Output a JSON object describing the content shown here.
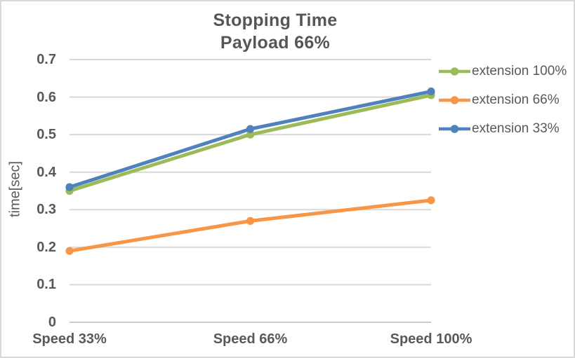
{
  "chart_data": {
    "type": "line",
    "title_line1": "Stopping Time",
    "title_line2": "Payload 66%",
    "ylabel": "time[sec]",
    "xlabel": "",
    "categories": [
      "Speed 33%",
      "Speed 66%",
      "Speed 100%"
    ],
    "series": [
      {
        "name": "extension 100%",
        "color": "#9BBB59",
        "values": [
          0.35,
          0.5,
          0.605
        ]
      },
      {
        "name": "extension 66%",
        "color": "#F79646",
        "values": [
          0.19,
          0.27,
          0.325
        ]
      },
      {
        "name": "extension 33%",
        "color": "#4F81BD",
        "values": [
          0.36,
          0.515,
          0.615
        ]
      }
    ],
    "ylim": [
      0,
      0.7
    ],
    "ytick_step": 0.1,
    "ytick_labels": [
      "0",
      "0.1",
      "0.2",
      "0.3",
      "0.4",
      "0.5",
      "0.6",
      "0.7"
    ],
    "grid": true,
    "legend_position": "right",
    "marker": "circle"
  },
  "colors": {
    "text": "#595959",
    "title_text": "#565656",
    "grid": "#D9D9D9",
    "zero_line": "#CCCCCC",
    "border": "#D9D9D9",
    "background": "#FFFFFF"
  }
}
